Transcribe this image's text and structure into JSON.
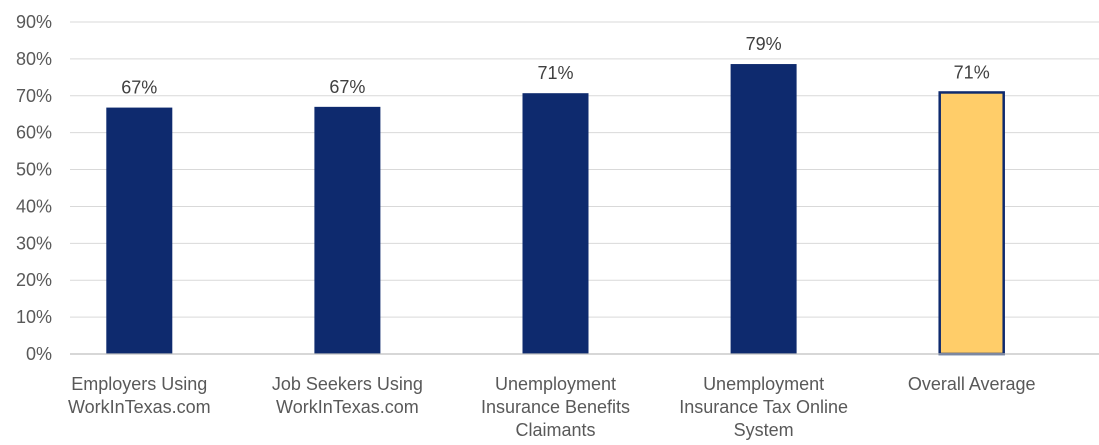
{
  "chart_data": {
    "type": "bar",
    "title": "",
    "xlabel": "",
    "ylabel": "",
    "ylim": [
      0,
      90
    ],
    "y_ticks": [
      "0%",
      "10%",
      "20%",
      "30%",
      "40%",
      "50%",
      "60%",
      "70%",
      "80%",
      "90%"
    ],
    "grid": true,
    "legend": "none",
    "categories": [
      [
        "Employers Using",
        "WorkInTexas.com"
      ],
      [
        "Job Seekers Using",
        "WorkInTexas.com"
      ],
      [
        "Unemployment",
        "Insurance Benefits",
        "Claimants"
      ],
      [
        "Unemployment",
        "Insurance Tax Online",
        "System"
      ],
      [
        "Overall Average"
      ]
    ],
    "values": [
      66.8,
      67,
      70.7,
      78.6,
      70.9
    ],
    "data_labels": [
      "67%",
      "67%",
      "71%",
      "79%",
      "71%"
    ],
    "colors": {
      "bar": "#0e2a6e",
      "highlight_fill": "#ffcd69",
      "highlight_border": "#0e2a6e"
    },
    "highlight_index": 4
  }
}
